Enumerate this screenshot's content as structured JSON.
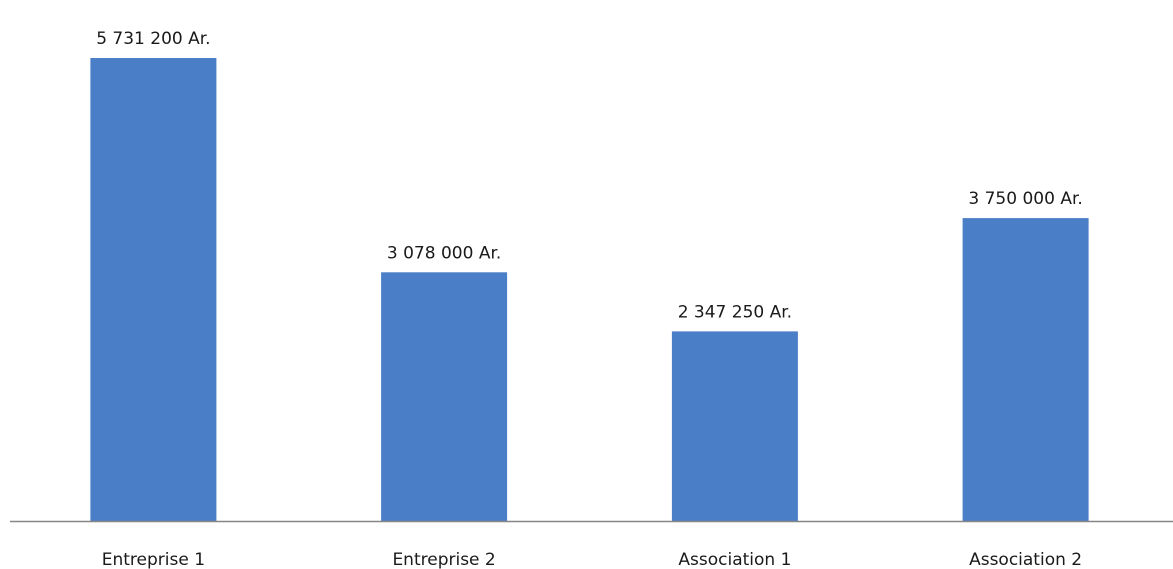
{
  "chart_data": {
    "type": "bar",
    "title": "",
    "xlabel": "",
    "ylabel": "",
    "categories": [
      "Entreprise 1",
      "Entreprise 2",
      "Association 1",
      "Association 2"
    ],
    "values": [
      5731200,
      3078000,
      2347250,
      3750000
    ],
    "data_labels": [
      "5 731 200 Ar.",
      "3 078 000 Ar.",
      "2 347 250 Ar.",
      "3 750 000 Ar."
    ],
    "ylim": [
      0,
      5731200
    ],
    "grid": false,
    "legend": "none",
    "colors": {
      "bar": "#4A7EC6",
      "axis": "#868686",
      "text": "#1a1a1a"
    }
  }
}
